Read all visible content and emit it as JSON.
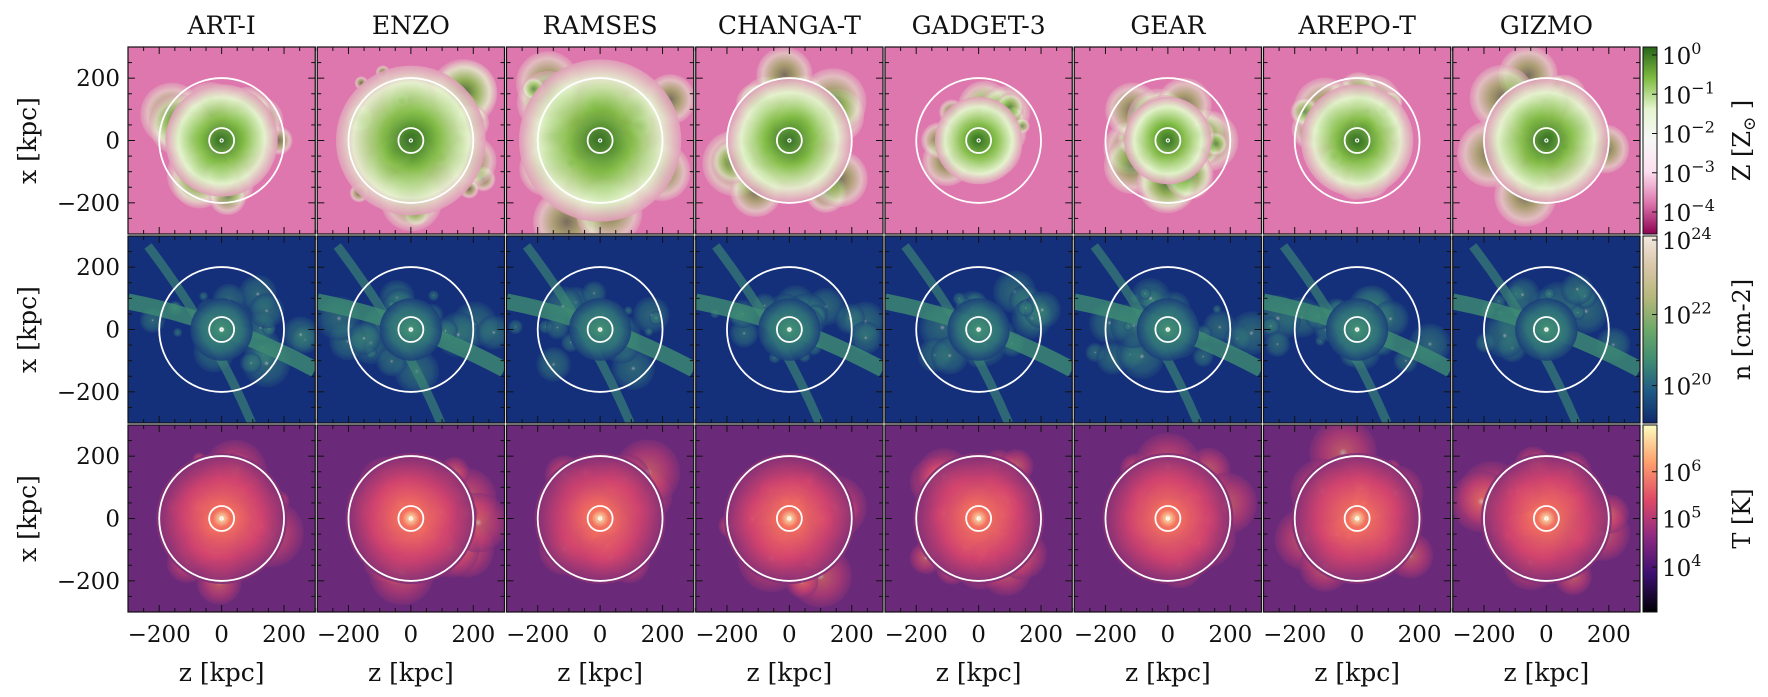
{
  "chart_data": {
    "type": "heatmap",
    "description_of_layout": "3x8 grid of projection maps",
    "codes": [
      "ART-I",
      "ENZO",
      "RAMSES",
      "CHANGA-T",
      "GADGET-3",
      "GEAR",
      "AREPO-T",
      "GIZMO"
    ],
    "rows": [
      {
        "quantity": "metallicity",
        "colorbar_label": "Z [Z",
        "colorbar_label_sub": "⊙",
        "colorbar_label_close": "]",
        "colormap": "PiYG",
        "colorbar_ticks": [
          {
            "base": "10",
            "exp": "0",
            "value": 1
          },
          {
            "base": "10",
            "exp": "−1",
            "value": 0.1
          },
          {
            "base": "10",
            "exp": "−2",
            "value": 0.01
          },
          {
            "base": "10",
            "exp": "−3",
            "value": 0.001
          },
          {
            "base": "10",
            "exp": "−4",
            "value": 0.0001
          }
        ],
        "colors": {
          "low": "#c51b7d",
          "mid": "#f7f7f7",
          "high": "#276419",
          "background": "#de77ae"
        }
      },
      {
        "quantity": "column density",
        "colorbar_label": "n [cm-2]",
        "colormap": "gist_earth",
        "colorbar_ticks": [
          {
            "base": "10",
            "exp": "24",
            "value": 1e+24
          },
          {
            "base": "10",
            "exp": "22",
            "value": 1e+22
          },
          {
            "base": "10",
            "exp": "20",
            "value": 1e+20
          }
        ],
        "colors": {
          "low": "#10296b",
          "mid": "#3f8c73",
          "high": "#f3e7df",
          "background": "#15307a"
        }
      },
      {
        "quantity": "temperature",
        "colorbar_label": "T [K]",
        "colormap": "magma",
        "colorbar_ticks": [
          {
            "base": "10",
            "exp": "6",
            "value": 1000000.0
          },
          {
            "base": "10",
            "exp": "5",
            "value": 100000.0
          },
          {
            "base": "10",
            "exp": "4",
            "value": 10000.0
          }
        ],
        "colors": {
          "low": "#000004",
          "mid": "#b63679",
          "high": "#fcfdbf",
          "background": "#6a2a79"
        }
      }
    ],
    "xlabel": "z [kpc]",
    "ylabel": "x [kpc]",
    "xticks": [
      -200,
      0,
      200
    ],
    "yticks": [
      200,
      0,
      -200
    ],
    "xlim": [
      -300,
      300
    ],
    "ylim": [
      -300,
      300
    ],
    "circle_radii_kpc": [
      200,
      40,
      5
    ],
    "circle_color": "#ffffff"
  }
}
